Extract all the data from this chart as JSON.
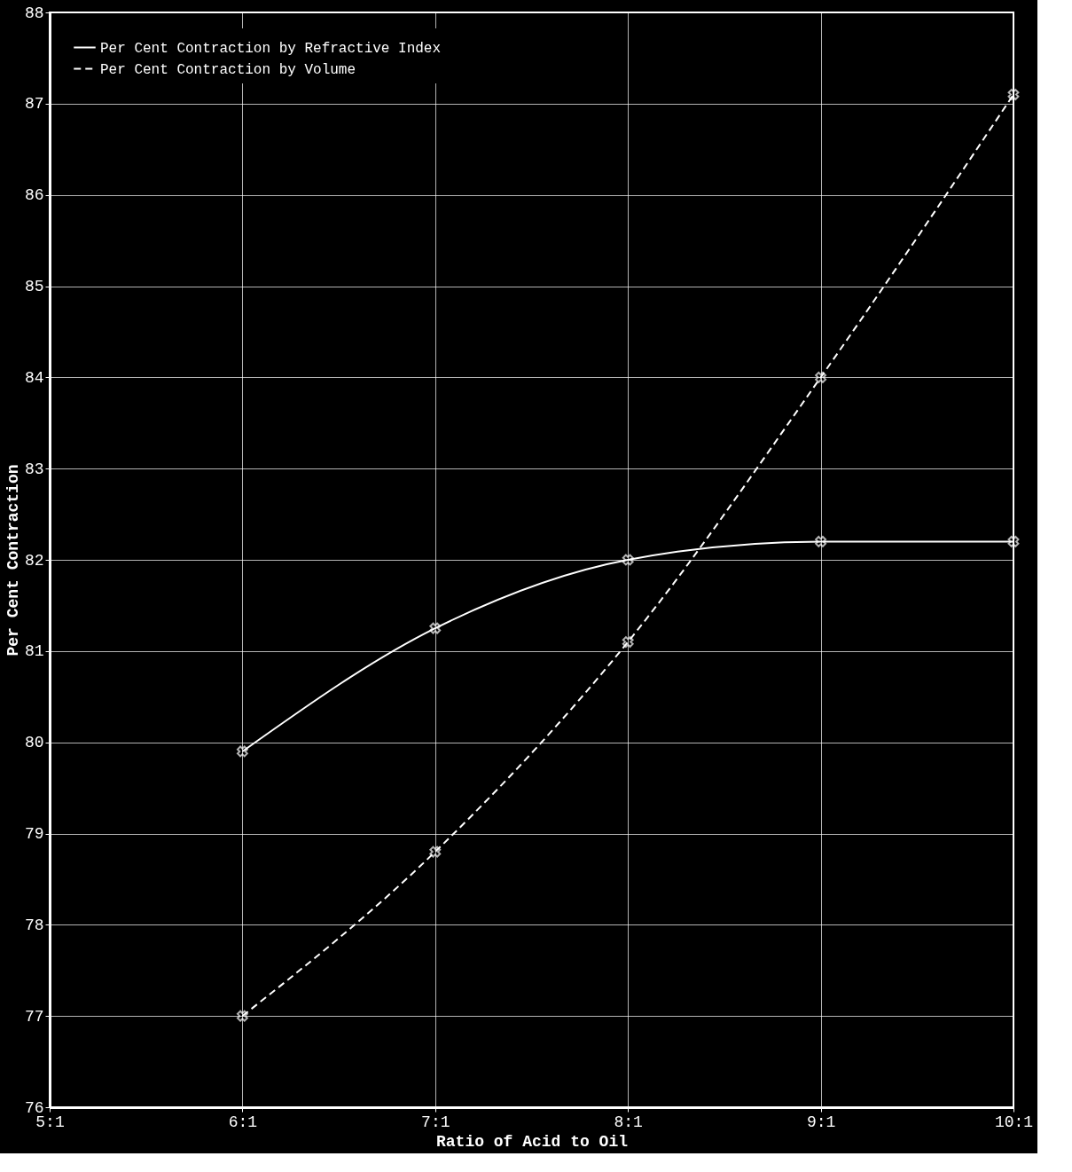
{
  "chart_data": {
    "type": "line",
    "xlabel": "Ratio of Acid to Oil",
    "ylabel": "Per Cent Contraction",
    "categories": [
      "5:1",
      "6:1",
      "7:1",
      "8:1",
      "9:1",
      "10:1"
    ],
    "series": [
      {
        "name": "Per Cent Contraction by Refractive Index",
        "color": "#ffffff",
        "line_style": "solid",
        "values": [
          null,
          79.9,
          81.25,
          82.0,
          82.2,
          82.2
        ]
      },
      {
        "name": "Per Cent Contraction by Volume",
        "color": "#ffffff",
        "line_style": "dashed",
        "values": [
          null,
          77.0,
          78.8,
          81.1,
          84.0,
          87.1
        ]
      }
    ],
    "ylim": [
      76,
      88
    ],
    "yticks": [
      76,
      77,
      78,
      79,
      80,
      81,
      82,
      83,
      84,
      85,
      86,
      87,
      88
    ],
    "grid": true,
    "legend": "top left",
    "marker": "cross"
  }
}
